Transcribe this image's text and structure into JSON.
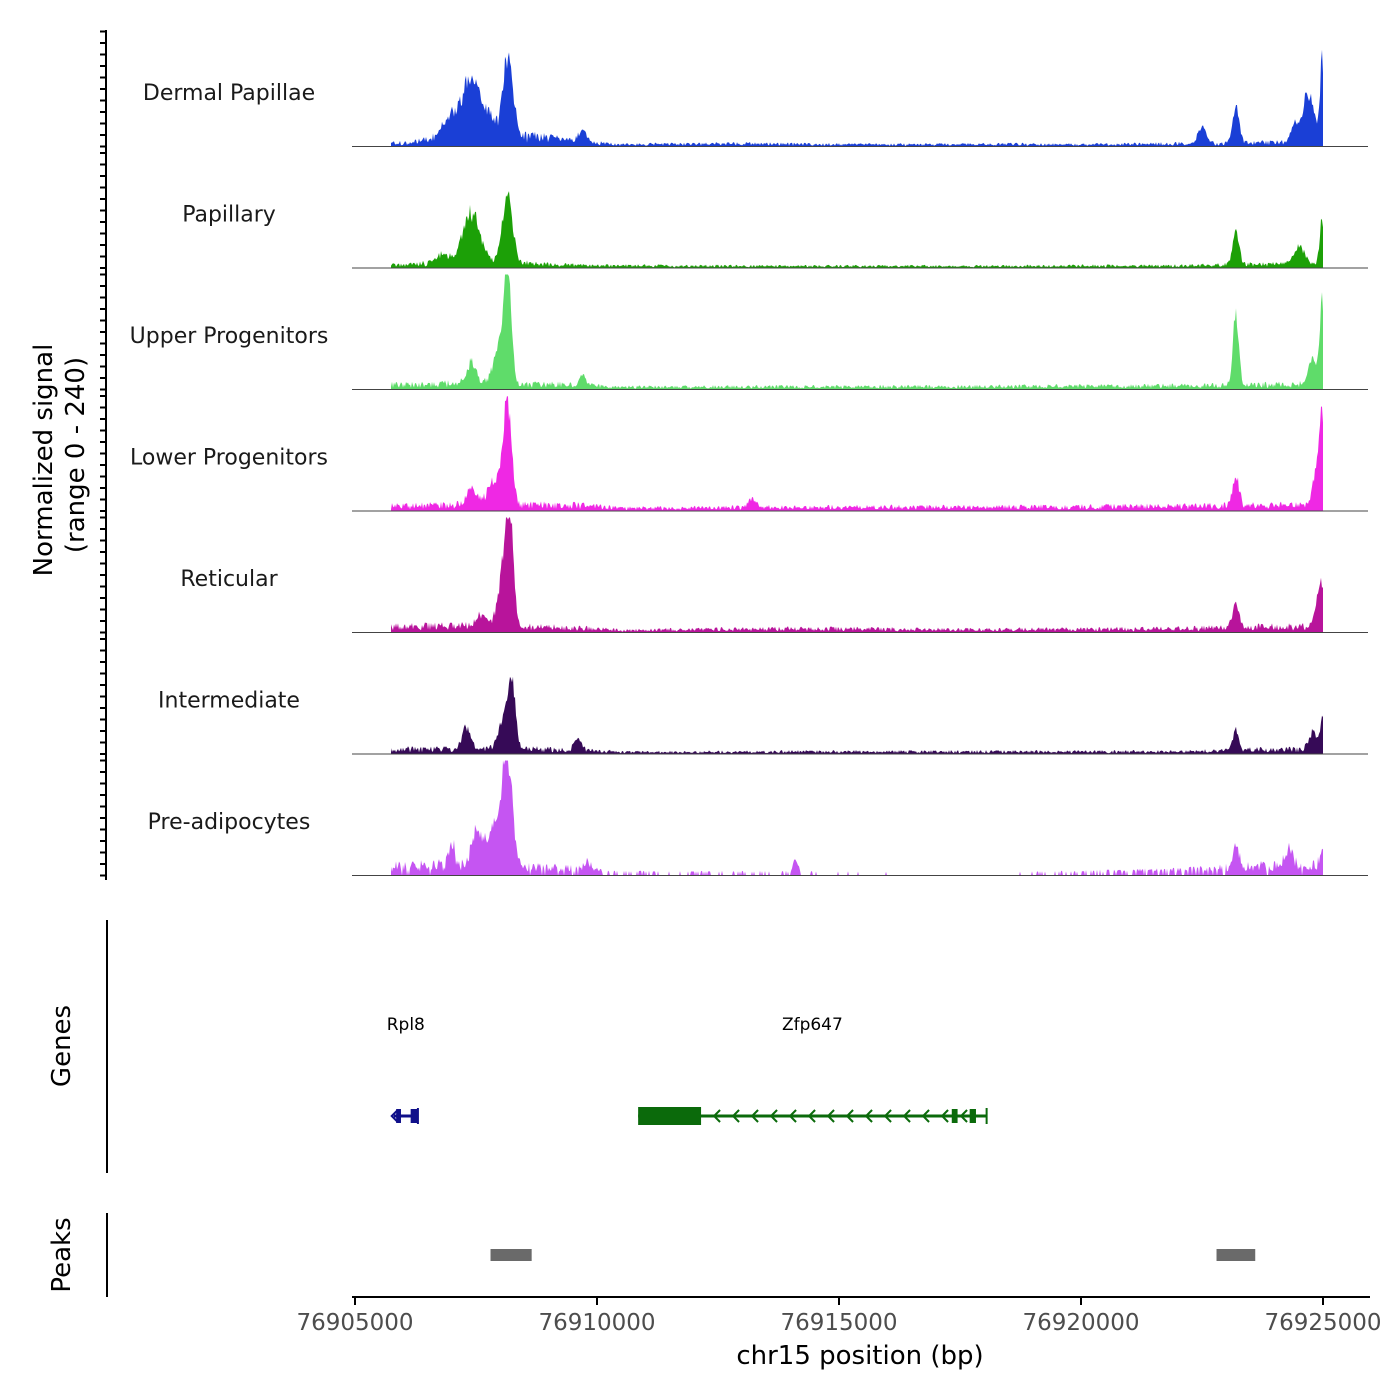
{
  "chart_data": {
    "type": "area",
    "ylabel_line1": "Normalized signal",
    "ylabel_line2": "(range 0 - 240)",
    "ylim": [
      0,
      240
    ],
    "xlabel": "chr15 position (bp)",
    "xlim": [
      76905000,
      76925000
    ],
    "xticks": [
      {
        "value": 76905000,
        "label": "76905000"
      },
      {
        "value": 76910000,
        "label": "76910000"
      },
      {
        "value": 76915000,
        "label": "76915000"
      },
      {
        "value": 76920000,
        "label": "76920000"
      },
      {
        "value": 76925000,
        "label": "76925000"
      }
    ],
    "tracks": [
      {
        "name": "Dermal Papillae",
        "color": "#1a3fd6",
        "baseline": [
          [
            76906000,
            8
          ],
          [
            76907000,
            18
          ],
          [
            76907500,
            30
          ],
          [
            76909500,
            12
          ],
          [
            76910500,
            4
          ],
          [
            76912500,
            6
          ],
          [
            76914000,
            5
          ],
          [
            76916000,
            4
          ],
          [
            76918000,
            5
          ],
          [
            76920000,
            4
          ],
          [
            76922000,
            6
          ],
          [
            76924000,
            8
          ]
        ],
        "peaks": [
          [
            76907400,
            120,
            30
          ],
          [
            76908150,
            200,
            12
          ],
          [
            76906900,
            30,
            18
          ],
          [
            76909700,
            25,
            10
          ],
          [
            76923200,
            90,
            8
          ],
          [
            76924700,
            120,
            14
          ],
          [
            76924980,
            190,
            5
          ],
          [
            76922500,
            40,
            10
          ],
          [
            76924400,
            40,
            10
          ]
        ]
      },
      {
        "name": "Papillary",
        "color": "#1ca007",
        "baseline": [
          [
            76906000,
            6
          ],
          [
            76907000,
            14
          ],
          [
            76908500,
            10
          ],
          [
            76910000,
            5
          ],
          [
            76914000,
            4
          ],
          [
            76918000,
            4
          ],
          [
            76922000,
            5
          ],
          [
            76924000,
            8
          ]
        ],
        "peaks": [
          [
            76907400,
            120,
            20
          ],
          [
            76908150,
            170,
            12
          ],
          [
            76923200,
            80,
            8
          ],
          [
            76924500,
            40,
            14
          ],
          [
            76924980,
            100,
            6
          ],
          [
            76906800,
            20,
            14
          ]
        ]
      },
      {
        "name": "Upper Progenitors",
        "color": "#5fdc6a",
        "baseline": [
          [
            76906000,
            10
          ],
          [
            76907000,
            12
          ],
          [
            76909500,
            10
          ],
          [
            76910500,
            5
          ],
          [
            76914000,
            6
          ],
          [
            76918000,
            6
          ],
          [
            76922000,
            8
          ],
          [
            76924000,
            10
          ]
        ],
        "peaks": [
          [
            76908150,
            240,
            9
          ],
          [
            76908000,
            90,
            16
          ],
          [
            76907400,
            50,
            12
          ],
          [
            76923200,
            175,
            7
          ],
          [
            76924800,
            60,
            12
          ],
          [
            76924980,
            190,
            5
          ],
          [
            76909700,
            25,
            8
          ]
        ]
      },
      {
        "name": "Lower Progenitors",
        "color": "#ef28e4",
        "baseline": [
          [
            76906000,
            10
          ],
          [
            76907000,
            14
          ],
          [
            76909500,
            12
          ],
          [
            76910500,
            6
          ],
          [
            76914000,
            8
          ],
          [
            76918000,
            8
          ],
          [
            76922000,
            10
          ],
          [
            76924000,
            12
          ]
        ],
        "peaks": [
          [
            76908150,
            240,
            10
          ],
          [
            76907900,
            60,
            18
          ],
          [
            76907400,
            40,
            12
          ],
          [
            76923200,
            70,
            8
          ],
          [
            76924900,
            120,
            10
          ],
          [
            76924980,
            150,
            5
          ],
          [
            76913200,
            20,
            10
          ]
        ]
      },
      {
        "name": "Reticular",
        "color": "#b8149b",
        "baseline": [
          [
            76906000,
            12
          ],
          [
            76907000,
            14
          ],
          [
            76909500,
            10
          ],
          [
            76910500,
            5
          ],
          [
            76914000,
            8
          ],
          [
            76918000,
            6
          ],
          [
            76922000,
            8
          ],
          [
            76924000,
            12
          ]
        ],
        "peaks": [
          [
            76908100,
            160,
            14
          ],
          [
            76908200,
            190,
            8
          ],
          [
            76907600,
            30,
            12
          ],
          [
            76923200,
            60,
            8
          ],
          [
            76924900,
            60,
            10
          ],
          [
            76924980,
            70,
            5
          ]
        ]
      },
      {
        "name": "Intermediate",
        "color": "#360a57",
        "baseline": [
          [
            76906000,
            10
          ],
          [
            76907000,
            10
          ],
          [
            76909500,
            10
          ],
          [
            76910500,
            4
          ],
          [
            76914000,
            5
          ],
          [
            76918000,
            5
          ],
          [
            76922000,
            5
          ],
          [
            76924000,
            10
          ]
        ],
        "peaks": [
          [
            76908100,
            90,
            14
          ],
          [
            76908250,
            130,
            8
          ],
          [
            76907300,
            50,
            10
          ],
          [
            76909600,
            30,
            8
          ],
          [
            76923200,
            50,
            7
          ],
          [
            76924800,
            40,
            10
          ],
          [
            76924980,
            70,
            5
          ]
        ]
      },
      {
        "name": "Pre-adipocytes",
        "color": "#c555f2",
        "baseline": [
          [
            76906000,
            18
          ],
          [
            76907000,
            22
          ],
          [
            76909500,
            14
          ],
          [
            76910500,
            6
          ],
          [
            76914000,
            6
          ],
          [
            76918000,
            4
          ],
          [
            76922000,
            10
          ],
          [
            76924000,
            20
          ]
        ],
        "peaks": [
          [
            76908150,
            240,
            12
          ],
          [
            76907900,
            90,
            22
          ],
          [
            76907500,
            70,
            12
          ],
          [
            76907000,
            60,
            6
          ],
          [
            76923200,
            50,
            8
          ],
          [
            76924300,
            40,
            10
          ],
          [
            76924980,
            45,
            5
          ],
          [
            76914100,
            35,
            6
          ],
          [
            76909800,
            22,
            8
          ]
        ]
      }
    ],
    "genes_label": "Genes",
    "genes": [
      {
        "name": "Rpl8",
        "start": 76905800,
        "end": 76906300,
        "color": "#10108a",
        "exons": [
          [
            76905850,
            76905950
          ],
          [
            76906150,
            76906300
          ]
        ],
        "strand": "-"
      },
      {
        "name": "Zfp647",
        "start": 76910850,
        "end": 76918050,
        "color": "#0b6a0b",
        "exons": [
          [
            76910850,
            76912150
          ],
          [
            76917330,
            76917450
          ],
          [
            76917700,
            76917830
          ]
        ],
        "strand": "-"
      }
    ],
    "peaks_label": "Peaks",
    "peak_regions": [
      {
        "start": 76907800,
        "end": 76908650,
        "color": "#6a6a6a"
      },
      {
        "start": 76922800,
        "end": 76923600,
        "color": "#6a6a6a"
      }
    ]
  }
}
